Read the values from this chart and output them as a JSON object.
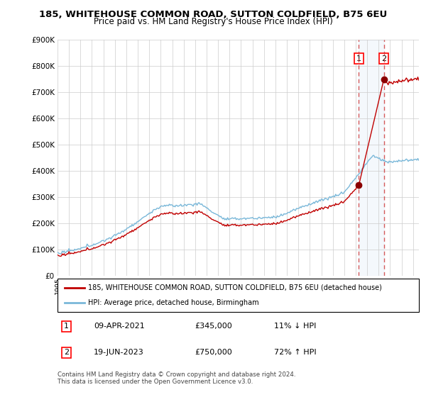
{
  "title": "185, WHITEHOUSE COMMON ROAD, SUTTON COLDFIELD, B75 6EU",
  "subtitle": "Price paid vs. HM Land Registry's House Price Index (HPI)",
  "legend_line1": "185, WHITEHOUSE COMMON ROAD, SUTTON COLDFIELD, B75 6EU (detached house)",
  "legend_line2": "HPI: Average price, detached house, Birmingham",
  "transaction1_date": "09-APR-2021",
  "transaction1_price": 345000,
  "transaction1_label": "11% ↓ HPI",
  "transaction2_date": "19-JUN-2023",
  "transaction2_price": 750000,
  "transaction2_label": "72% ↑ HPI",
  "footer": "Contains HM Land Registry data © Crown copyright and database right 2024.\nThis data is licensed under the Open Government Licence v3.0.",
  "hpi_color": "#7ab8d9",
  "price_color": "#c00000",
  "marker_color": "#8b0000",
  "vline_color": "#d04040",
  "span_color": "#ddeeff",
  "ylim_min": 0,
  "ylim_max": 900000,
  "xlim_min": 1995.0,
  "xlim_max": 2026.5,
  "transaction1_year": 2021.27,
  "transaction2_year": 2023.46
}
